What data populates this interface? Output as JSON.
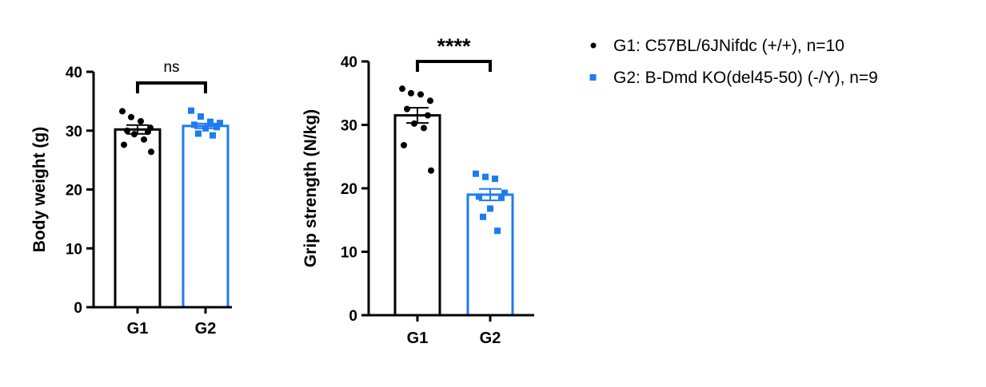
{
  "colors": {
    "G1": "#000000",
    "G2": "#1e7cf0"
  },
  "legend": {
    "items": [
      {
        "group": "G1",
        "marker": "circle",
        "label": "G1: C57BL/6JNifdc (+/+), n=10"
      },
      {
        "group": "G2",
        "marker": "square",
        "label": "G2: B-Dmd KO(del45-50) (-/Y), n=9"
      }
    ]
  },
  "chart_data": [
    {
      "type": "bar",
      "ylabel": "Body weight (g)",
      "categories": [
        "G1",
        "G2"
      ],
      "ylim": [
        0,
        40
      ],
      "yticks": [
        0,
        10,
        20,
        30,
        40
      ],
      "means": [
        30.2,
        30.8
      ],
      "sem": [
        0.75,
        0.4
      ],
      "significance": "ns",
      "points": [
        [
          33.3,
          32.3,
          31.6,
          30.5,
          30.0,
          29.8,
          29.4,
          28.5,
          27.6,
          26.4
        ],
        [
          33.4,
          32.4,
          31.5,
          31.3,
          31.0,
          30.6,
          30.4,
          29.5,
          29.2
        ]
      ]
    },
    {
      "type": "bar",
      "ylabel": "Grip strength (N/kg)",
      "categories": [
        "G1",
        "G2"
      ],
      "ylim": [
        0,
        40
      ],
      "yticks": [
        0,
        10,
        20,
        30,
        40
      ],
      "means": [
        31.5,
        19.0
      ],
      "sem": [
        1.2,
        0.9
      ],
      "significance": "****",
      "points": [
        [
          35.7,
          35.0,
          34.8,
          33.8,
          32.5,
          31.5,
          30.2,
          29.5,
          26.8,
          22.8
        ],
        [
          22.3,
          21.8,
          21.5,
          19.3,
          18.7,
          18.5,
          16.8,
          15.5,
          13.3
        ]
      ]
    }
  ]
}
